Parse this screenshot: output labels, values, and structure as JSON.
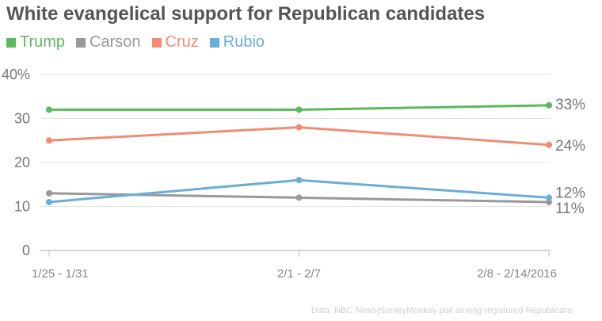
{
  "chart_data": {
    "type": "line",
    "title": "White evangelical support for Republican candidates",
    "xlabel": "",
    "ylabel": "",
    "categories": [
      "1/25 - 1/31",
      "2/1 - 2/7",
      "2/8 - 2/14/2016"
    ],
    "y_ticks": [
      "0",
      "10",
      "20",
      "30",
      "40%"
    ],
    "ylim": [
      0,
      40
    ],
    "grid": true,
    "legend_position": "top-left",
    "series": [
      {
        "name": "Trump",
        "color": "#5cb85c",
        "values": [
          32,
          32,
          33
        ],
        "end_label": "33%"
      },
      {
        "name": "Carson",
        "color": "#999999",
        "values": [
          13,
          12,
          11
        ],
        "end_label": "11%"
      },
      {
        "name": "Cruz",
        "color": "#f08c72",
        "values": [
          25,
          28,
          24
        ],
        "end_label": "24%"
      },
      {
        "name": "Rubio",
        "color": "#6aaed6",
        "values": [
          11,
          16,
          12
        ],
        "end_label": "12%"
      }
    ],
    "source": "Data: NBC News|SurveyMonkey poll among registered Republicans"
  }
}
